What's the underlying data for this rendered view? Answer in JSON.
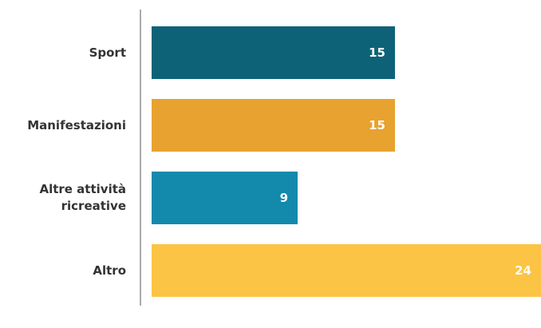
{
  "chart_data": {
    "type": "bar",
    "orientation": "horizontal",
    "categories": [
      "Sport",
      "Manifestazioni",
      "Altre attività ricreative",
      "Altro"
    ],
    "values": [
      15,
      15,
      9,
      24
    ],
    "colors": [
      "#0e6278",
      "#e8a22f",
      "#138aab",
      "#fcc445"
    ]
  }
}
